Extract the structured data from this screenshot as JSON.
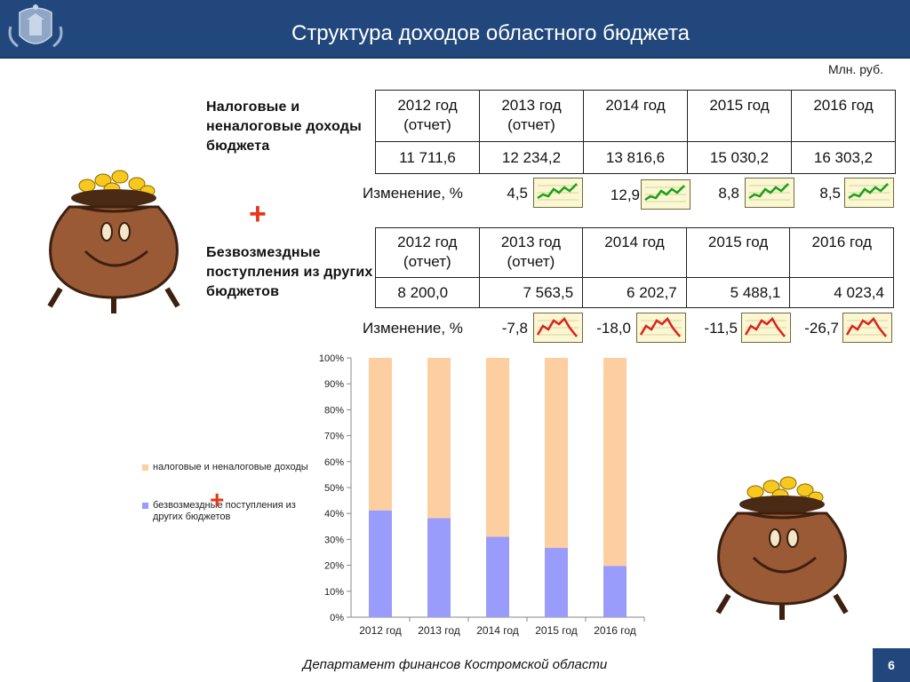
{
  "header": {
    "title": "Структура доходов областного бюджета",
    "emblem": "coat-of-arms-icon"
  },
  "units": "Млн. руб.",
  "tax_section": {
    "label": "Налоговые и неналоговые доходы бюджета",
    "columns": [
      {
        "year": "2012 год",
        "note": "(отчет)"
      },
      {
        "year": "2013 год",
        "note": "(отчет)"
      },
      {
        "year": "2014 год",
        "note": ""
      },
      {
        "year": "2015 год",
        "note": ""
      },
      {
        "year": "2016 год",
        "note": ""
      }
    ],
    "values": [
      "11 711,6",
      "12 234,2",
      "13 816,6",
      "15 030,2",
      "16 303,2"
    ],
    "change_label": "Изменение, %",
    "changes": [
      "4,5",
      "12,9",
      "8,8",
      "8,5"
    ],
    "change_icon": "green-rising-sparkline-icon"
  },
  "grant_section": {
    "label": "Безвозмездные поступления из других бюджетов",
    "columns": [
      {
        "year": "2012 год",
        "note": "(отчет)"
      },
      {
        "year": "2013 год",
        "note": "(отчет)"
      },
      {
        "year": "2014 год",
        "note": ""
      },
      {
        "year": "2015 год",
        "note": ""
      },
      {
        "year": "2016 год",
        "note": ""
      }
    ],
    "values": [
      "8 200,0",
      "7 563,5",
      "6 202,7",
      "5 488,1",
      "4 023,4"
    ],
    "change_label": "Изменение, %",
    "changes": [
      "-7,8",
      "-18,0",
      "-11,5",
      "-26,7"
    ],
    "change_icon": "red-falling-sparkline-icon"
  },
  "plus_sign": "+",
  "chart_data": {
    "type": "bar",
    "stacked": true,
    "percent": true,
    "categories": [
      "2012 год",
      "2013 год",
      "2014 год",
      "2015 год",
      "2016 год"
    ],
    "series": [
      {
        "name": "безвозмездные поступления из других бюджетов",
        "color": "#9a9cfb",
        "values": [
          41.2,
          38.2,
          31.0,
          26.7,
          19.8
        ]
      },
      {
        "name": "налоговые и неналоговые доходы",
        "color": "#fdcea0",
        "values": [
          58.8,
          61.8,
          69.0,
          73.3,
          80.2
        ]
      }
    ],
    "ylim": [
      0,
      100
    ],
    "yticks": [
      "0%",
      "10%",
      "20%",
      "30%",
      "40%",
      "50%",
      "60%",
      "70%",
      "80%",
      "90%",
      "100%"
    ],
    "legend_position": "left",
    "legend": [
      "налоговые и неналоговые доходы",
      "безвозмездные поступления из других бюджетов"
    ]
  },
  "footer": "Департамент финансов  Костромской области",
  "page_number": "6"
}
